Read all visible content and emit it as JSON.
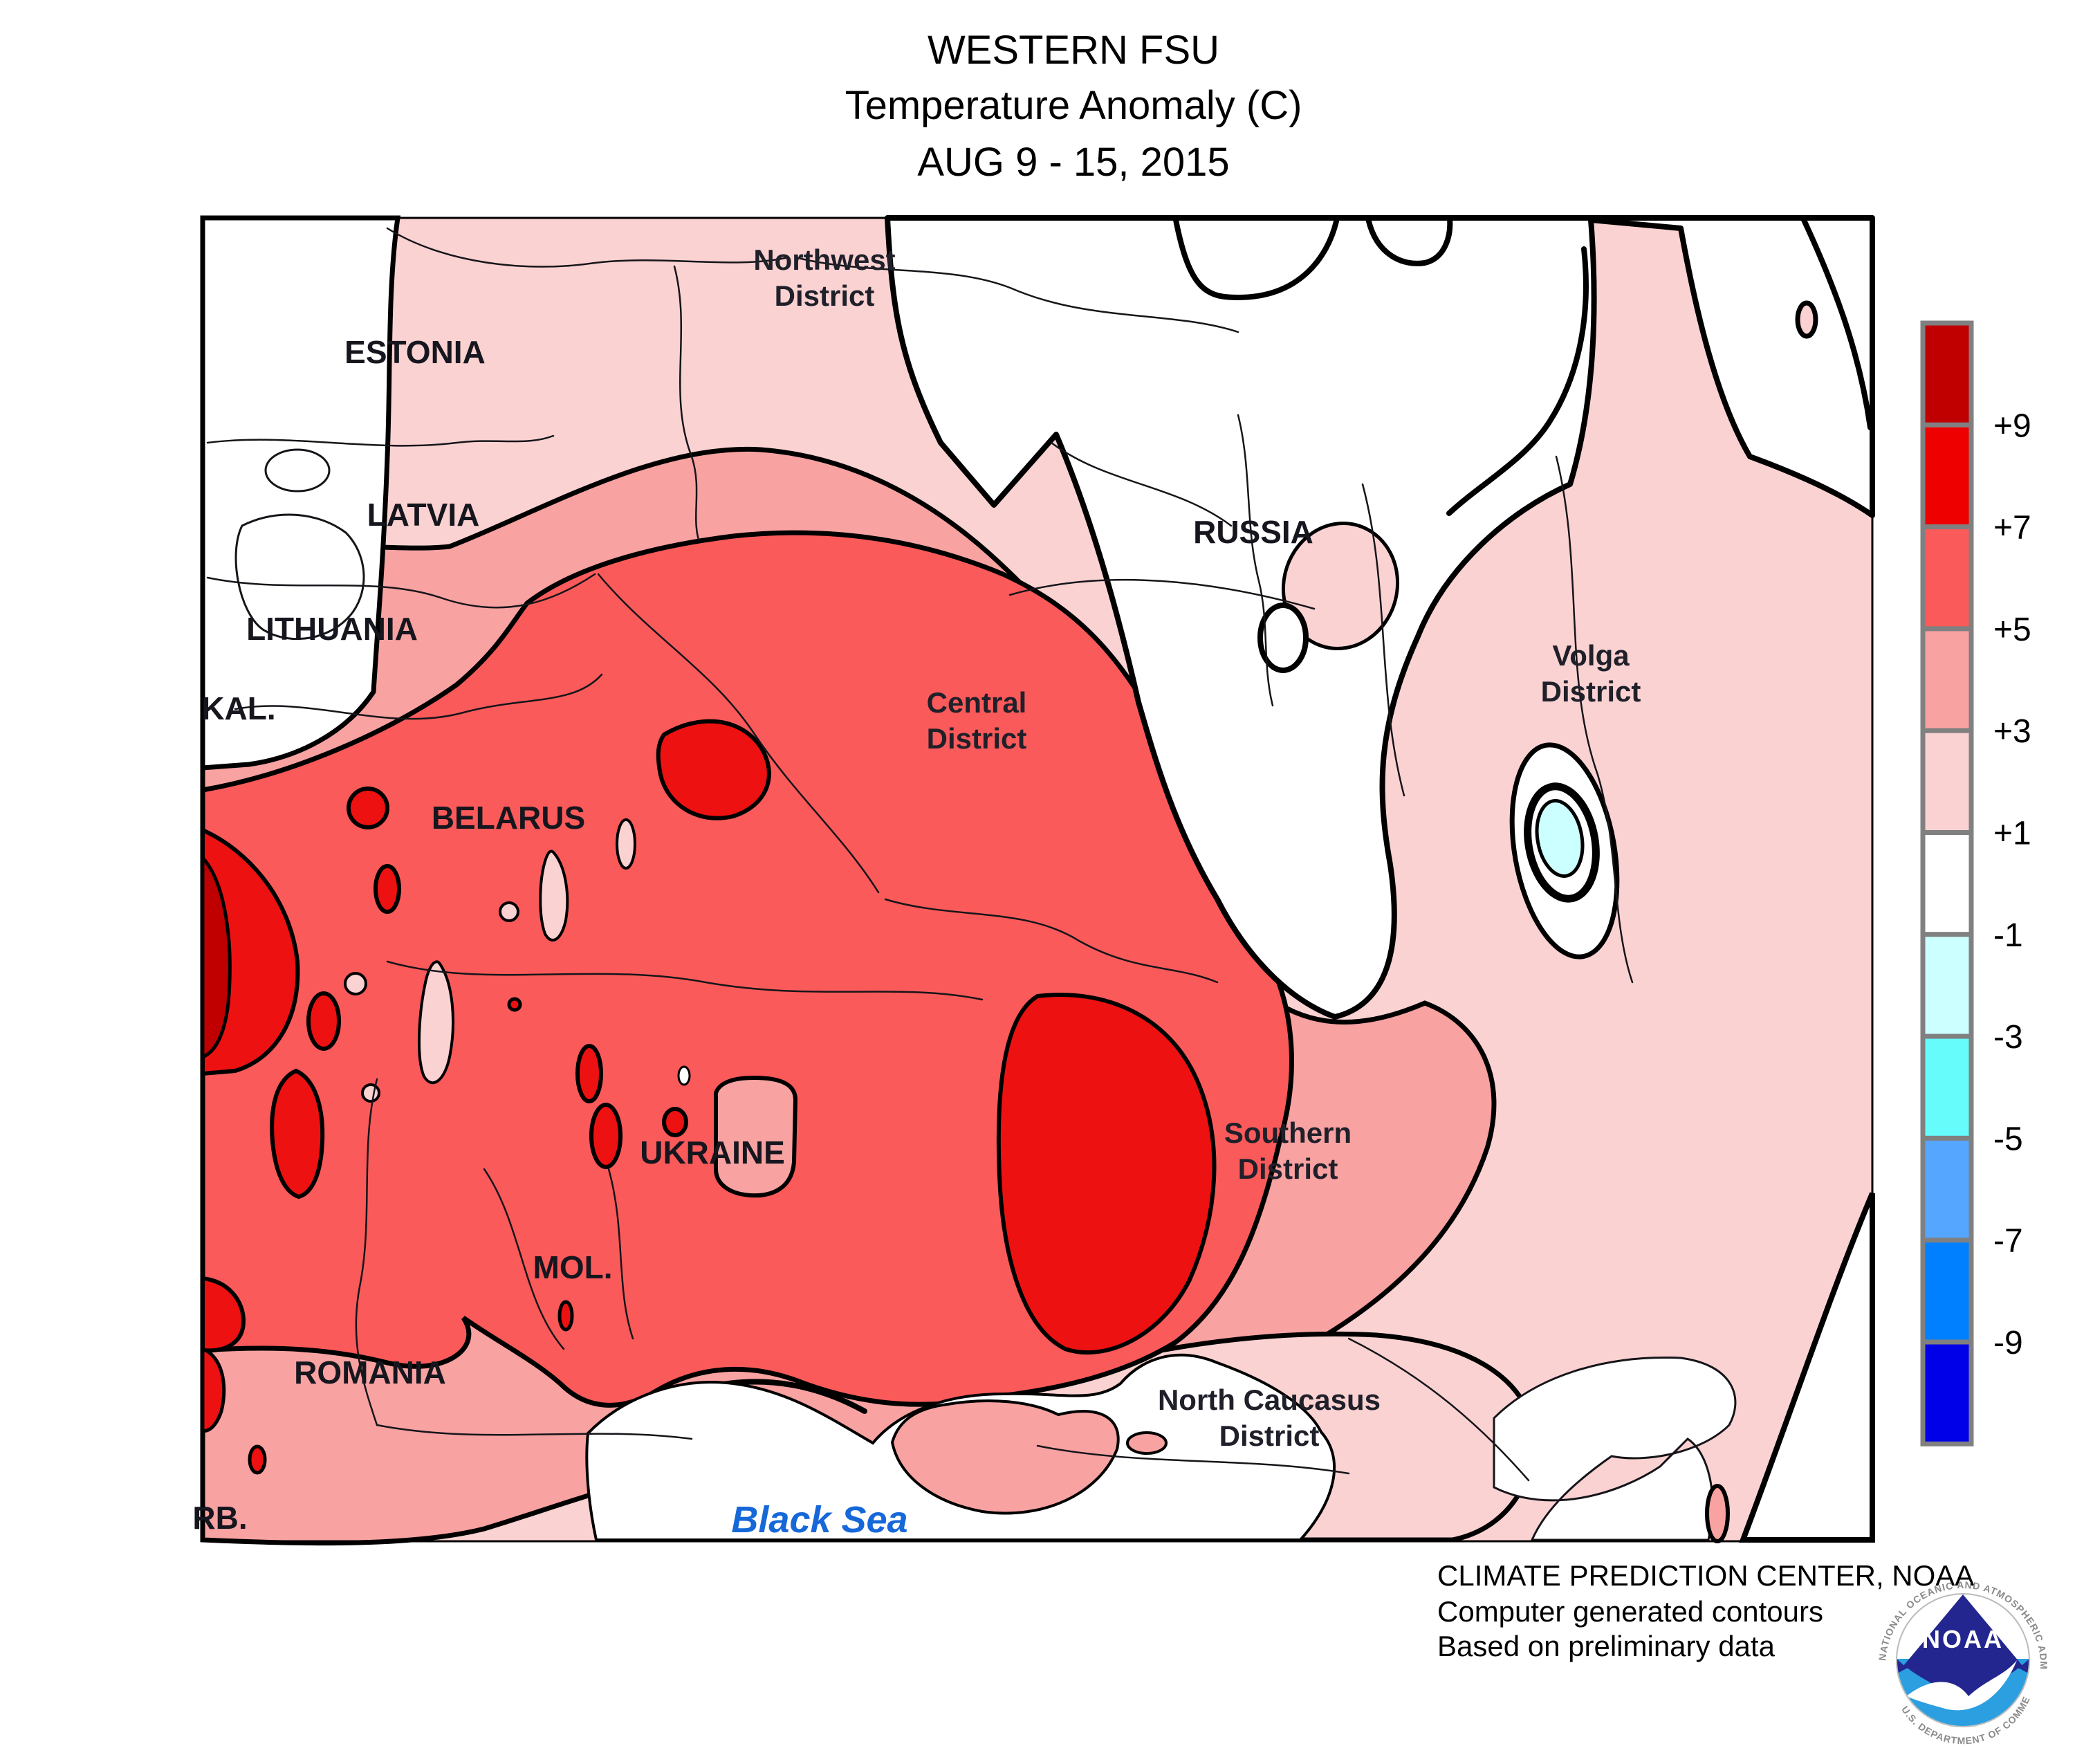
{
  "title": {
    "line1": "WESTERN FSU",
    "line2": "Temperature Anomaly (C)",
    "line3": "AUG 9 - 15, 2015"
  },
  "credit": {
    "line1": "CLIMATE PREDICTION CENTER, NOAA",
    "line2": "Computer generated contours",
    "line3": "Based on preliminary data"
  },
  "legend": {
    "cells": [
      "#c00000",
      "#ee0000",
      "#fb5a5a",
      "#f8a2a2",
      "#fbd2d2",
      "#ffffff",
      "#ccffff",
      "#66fcfc",
      "#55a6ff",
      "#0080ff",
      "#0000e8"
    ],
    "ticks": [
      "+9",
      "+7",
      "+5",
      "+3",
      "+1",
      "-1",
      "-3",
      "-5",
      "-7",
      "-9"
    ]
  },
  "map_labels": {
    "estonia": "ESTONIA",
    "latvia": "LATVIA",
    "lithuania": "LITHUANIA",
    "kaliningrad": "KAL.",
    "belarus": "BELARUS",
    "ukraine": "UKRAINE",
    "moldova": "MOL.",
    "romania": "ROMANIA",
    "serbia": "RB.",
    "russia": "RUSSIA",
    "northwest_district": {
      "line1": "Northwest",
      "line2": "District"
    },
    "central_district": {
      "line1": "Central",
      "line2": "District"
    },
    "volga_district": {
      "line1": "Volga",
      "line2": "District"
    },
    "southern_district": {
      "line1": "Southern",
      "line2": "District"
    },
    "north_caucasus_district": {
      "line1": "North Caucasus",
      "line2": "District"
    },
    "black_sea": "Black Sea"
  },
  "noaa_logo": {
    "acronym": "NOAA",
    "ring_top": "NATIONAL OCEANIC AND ATMOSPHERIC ADMINISTRATION",
    "ring_bottom": "U.S. DEPARTMENT OF COMMERCE"
  },
  "colors": {
    "pink": "#fbd2d2",
    "salmon": "#f8a2a2",
    "medred": "#fb5a5a",
    "red": "#ee1111",
    "darkred": "#c00000",
    "lightcyan": "#ccffff",
    "sealabel": "#1668d9",
    "noaa_dark_blue": "#24268f",
    "noaa_light_blue": "#2b9fe0"
  }
}
